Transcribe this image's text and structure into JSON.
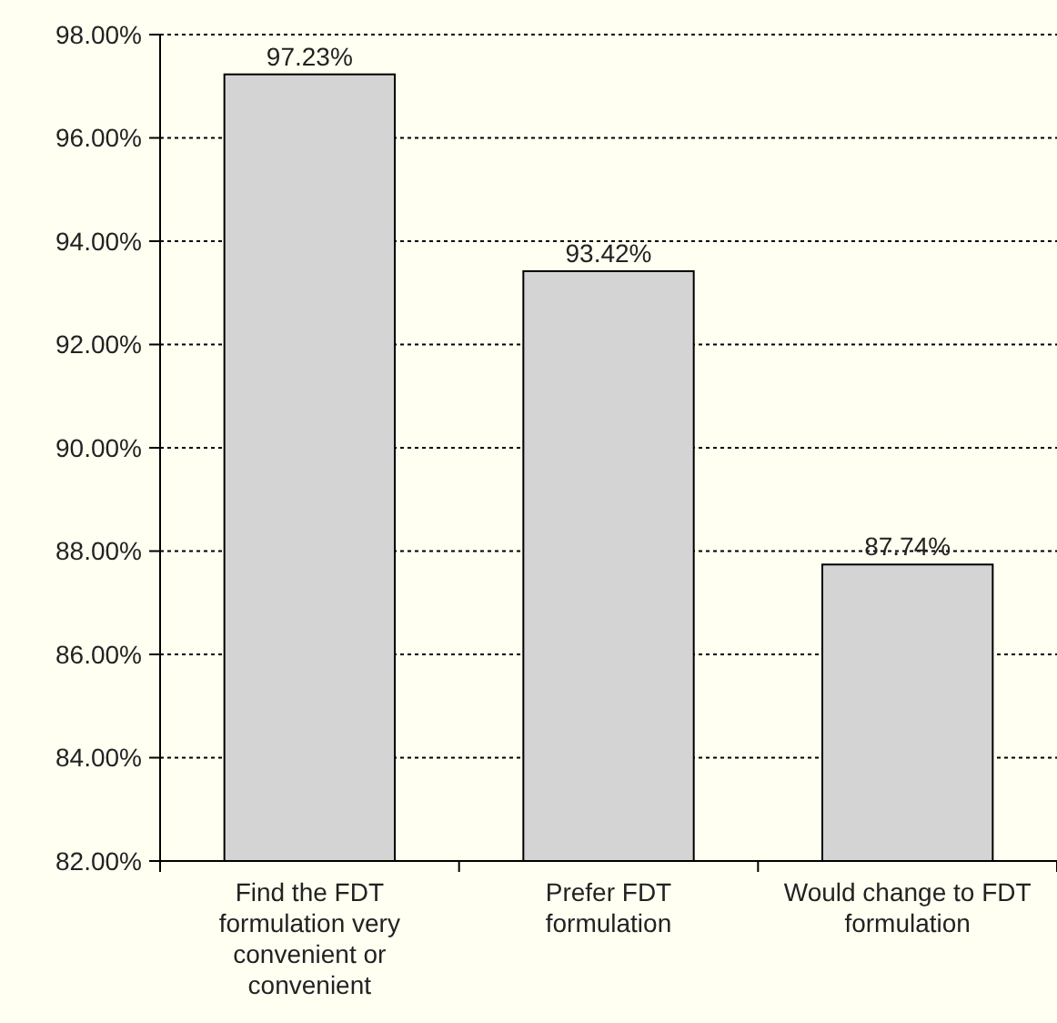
{
  "chart_data": {
    "type": "bar",
    "categories": [
      "Find the FDT formulation very convenient or convenient",
      "Prefer FDT formulation",
      "Would change to FDT formulation"
    ],
    "values": [
      97.23,
      93.42,
      87.74
    ],
    "value_labels": [
      "97.23%",
      "93.42%",
      "87.74%"
    ],
    "color": "#d4d4d4",
    "ylim": [
      82,
      98
    ],
    "yticks": [
      {
        "value": 82,
        "label": "82.00%"
      },
      {
        "value": 84,
        "label": "84.00%"
      },
      {
        "value": 86,
        "label": "86.00%"
      },
      {
        "value": 88,
        "label": "88.00%"
      },
      {
        "value": 90,
        "label": "90.00%"
      },
      {
        "value": 92,
        "label": "92.00%"
      },
      {
        "value": 94,
        "label": "94.00%"
      },
      {
        "value": 96,
        "label": "96.00%"
      },
      {
        "value": 98,
        "label": "98.00%"
      }
    ],
    "grid": "y",
    "line_style": "dotted"
  }
}
